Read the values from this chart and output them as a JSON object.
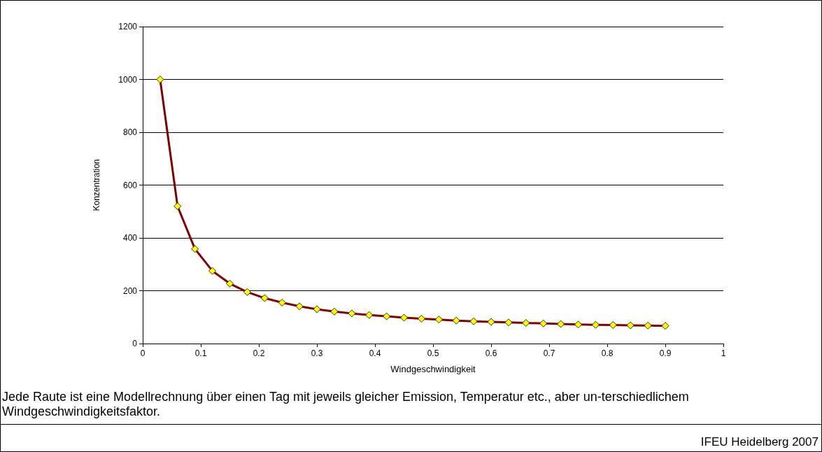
{
  "chart_data": {
    "type": "line",
    "xlabel": "Windgeschwindigkeit",
    "ylabel": "Konzentration",
    "x": [
      0.03,
      0.06,
      0.09,
      0.12,
      0.15,
      0.18,
      0.21,
      0.24,
      0.27,
      0.3,
      0.33,
      0.36,
      0.39,
      0.42,
      0.45,
      0.48,
      0.51,
      0.54,
      0.57,
      0.6,
      0.63,
      0.66,
      0.69,
      0.72,
      0.75,
      0.78,
      0.81,
      0.84,
      0.87,
      0.9
    ],
    "series": [
      {
        "color": "#800000",
        "values": [
          1000,
          520,
          358,
          275,
          227,
          195,
          172,
          155,
          141,
          130,
          121,
          114,
          108,
          103,
          98,
          94,
          91,
          87,
          84,
          82,
          80,
          78,
          76,
          74,
          72,
          71,
          70,
          69,
          68,
          67
        ]
      }
    ],
    "xlim": [
      0,
      1
    ],
    "xticks": [
      0,
      0.1,
      0.2,
      0.3,
      0.4,
      0.5,
      0.6,
      0.7,
      0.8,
      0.9,
      1
    ],
    "ylim": [
      0,
      1200
    ],
    "yticks": [
      0,
      200,
      400,
      600,
      800,
      1000,
      1200
    ],
    "grid": "y",
    "marker": "diamond",
    "line_style": "solid",
    "annotations": [
      "Jede Raute ist eine Modellrechnung über einen Tag mit jeweils gleicher Emission, Temperatur etc., aber un-terschiedlichem Windgeschwindigkeitsfaktor.",
      "IFEU Heidelberg 2007"
    ]
  }
}
